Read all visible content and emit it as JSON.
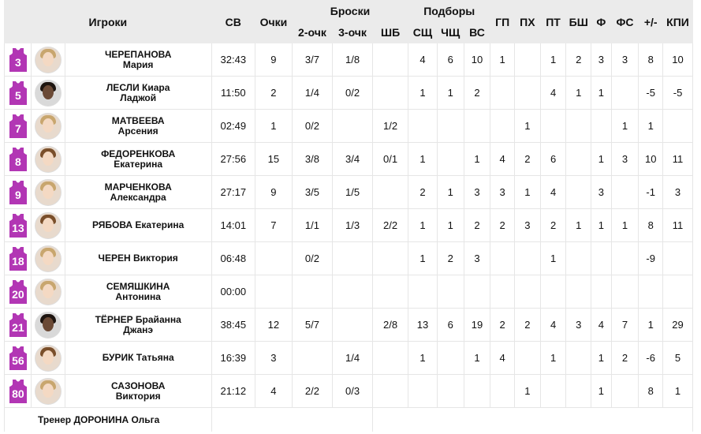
{
  "header": {
    "players": "Игроки",
    "time": "СВ",
    "points": "Очки",
    "shots": "Броски",
    "two_pt": "2-очк",
    "three_pt": "3-очк",
    "ft": "ШБ",
    "rebounds": "Подборы",
    "reb_def": "СЩ",
    "reb_off": "ЧЩ",
    "reb_total": "ВС",
    "assists": "ГП",
    "steals": "ПХ",
    "turnovers": "ПТ",
    "blocks": "БШ",
    "fouls": "Ф",
    "fouls_drawn": "ФС",
    "plus_minus": "+/-",
    "efficiency": "КПИ"
  },
  "jersey_color": "#b236b4",
  "players": [
    {
      "num": "3",
      "avatar": "blonde",
      "name1": "ЧЕРЕПАНОВА",
      "name2": "Мария",
      "time": "32:43",
      "pts": "9",
      "two": "3/7",
      "three": "1/8",
      "ft": "",
      "def": "4",
      "off": "6",
      "tot": "10",
      "ast": "1",
      "stl": "",
      "to": "1",
      "blk": "2",
      "f": "3",
      "fs": "3",
      "pm": "8",
      "eff": "10"
    },
    {
      "num": "5",
      "avatar": "dark",
      "name1": "ЛЕСЛИ Киара",
      "name2": "Ладжой",
      "time": "11:50",
      "pts": "2",
      "two": "1/4",
      "three": "0/2",
      "ft": "",
      "def": "1",
      "off": "1",
      "tot": "2",
      "ast": "",
      "stl": "",
      "to": "4",
      "blk": "1",
      "f": "1",
      "fs": "",
      "pm": "-5",
      "eff": "-5"
    },
    {
      "num": "7",
      "avatar": "blonde",
      "name1": "МАТВЕЕВА",
      "name2": "Арсения",
      "time": "02:49",
      "pts": "1",
      "two": "0/2",
      "three": "",
      "ft": "1/2",
      "def": "",
      "off": "",
      "tot": "",
      "ast": "",
      "stl": "1",
      "to": "",
      "blk": "",
      "f": "",
      "fs": "1",
      "pm": "1",
      "eff": ""
    },
    {
      "num": "8",
      "avatar": "brown",
      "name1": "ФЕДОРЕНКОВА",
      "name2": "Екатерина",
      "time": "27:56",
      "pts": "15",
      "two": "3/8",
      "three": "3/4",
      "ft": "0/1",
      "def": "1",
      "off": "",
      "tot": "1",
      "ast": "4",
      "stl": "2",
      "to": "6",
      "blk": "",
      "f": "1",
      "fs": "3",
      "pm": "10",
      "eff": "11"
    },
    {
      "num": "9",
      "avatar": "blonde",
      "name1": "МАРЧЕНКОВА",
      "name2": "Александра",
      "time": "27:17",
      "pts": "9",
      "two": "3/5",
      "three": "1/5",
      "ft": "",
      "def": "2",
      "off": "1",
      "tot": "3",
      "ast": "3",
      "stl": "1",
      "to": "4",
      "blk": "",
      "f": "3",
      "fs": "",
      "pm": "-1",
      "eff": "3"
    },
    {
      "num": "13",
      "avatar": "brown",
      "name1": "РЯБОВА Екатерина",
      "name2": "",
      "time": "14:01",
      "pts": "7",
      "two": "1/1",
      "three": "1/3",
      "ft": "2/2",
      "def": "1",
      "off": "1",
      "tot": "2",
      "ast": "2",
      "stl": "3",
      "to": "2",
      "blk": "1",
      "f": "1",
      "fs": "1",
      "pm": "8",
      "eff": "11"
    },
    {
      "num": "18",
      "avatar": "blonde",
      "name1": "ЧЕРЕН Виктория",
      "name2": "",
      "time": "06:48",
      "pts": "",
      "two": "0/2",
      "three": "",
      "ft": "",
      "def": "1",
      "off": "2",
      "tot": "3",
      "ast": "",
      "stl": "",
      "to": "1",
      "blk": "",
      "f": "",
      "fs": "",
      "pm": "-9",
      "eff": ""
    },
    {
      "num": "20",
      "avatar": "blonde",
      "name1": "СЕМЯШКИНА",
      "name2": "Антонина",
      "time": "00:00",
      "pts": "",
      "two": "",
      "three": "",
      "ft": "",
      "def": "",
      "off": "",
      "tot": "",
      "ast": "",
      "stl": "",
      "to": "",
      "blk": "",
      "f": "",
      "fs": "",
      "pm": "",
      "eff": ""
    },
    {
      "num": "21",
      "avatar": "dark",
      "name1": "ТЁРНЕР Брайанна",
      "name2": "Джанэ",
      "time": "38:45",
      "pts": "12",
      "two": "5/7",
      "three": "",
      "ft": "2/8",
      "def": "13",
      "off": "6",
      "tot": "19",
      "ast": "2",
      "stl": "2",
      "to": "4",
      "blk": "3",
      "f": "4",
      "fs": "7",
      "pm": "1",
      "eff": "29"
    },
    {
      "num": "56",
      "avatar": "brown",
      "name1": "БУРИК Татьяна",
      "name2": "",
      "time": "16:39",
      "pts": "3",
      "two": "",
      "three": "1/4",
      "ft": "",
      "def": "1",
      "off": "",
      "tot": "1",
      "ast": "4",
      "stl": "",
      "to": "1",
      "blk": "",
      "f": "1",
      "fs": "2",
      "pm": "-6",
      "eff": "5"
    },
    {
      "num": "80",
      "avatar": "blonde",
      "name1": "САЗОНОВА",
      "name2": "Виктория",
      "time": "21:12",
      "pts": "4",
      "two": "2/2",
      "three": "0/3",
      "ft": "",
      "def": "",
      "off": "",
      "tot": "",
      "ast": "",
      "stl": "1",
      "to": "",
      "blk": "",
      "f": "1",
      "fs": "",
      "pm": "8",
      "eff": "1"
    }
  ],
  "coach": "Тренер ДОРОНИНА Ольга"
}
